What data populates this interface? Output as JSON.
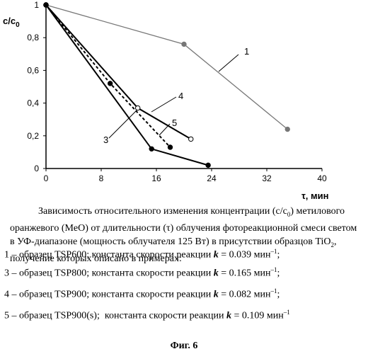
{
  "chart_data": {
    "type": "line",
    "ylabel": "c/c₀",
    "xlabel": "τ, мин",
    "xlim": [
      0,
      40
    ],
    "ylim": [
      0,
      1
    ],
    "x_ticks": [
      "0",
      "8",
      "16",
      "24",
      "32",
      "40"
    ],
    "y_ticks": [
      "0",
      "0,2",
      "0,4",
      "0,6",
      "0,8",
      "1"
    ],
    "grid": false,
    "series": [
      {
        "name": "1",
        "style": "solid",
        "marker": "filled",
        "color": "#777777",
        "x": [
          0,
          20,
          35
        ],
        "y": [
          1,
          0.76,
          0.24
        ]
      },
      {
        "name": "3",
        "style": "solid",
        "marker": "filled",
        "color": "#000000",
        "x": [
          0,
          15.3,
          23.5
        ],
        "y": [
          1,
          0.12,
          0.02
        ]
      },
      {
        "name": "4",
        "style": "solid",
        "marker": "open",
        "color": "#000000",
        "x": [
          0,
          13.3,
          21
        ],
        "y": [
          1,
          0.37,
          0.18
        ]
      },
      {
        "name": "5",
        "style": "dashed",
        "marker": "filled",
        "color": "#000000",
        "x": [
          0,
          9.3,
          18
        ],
        "y": [
          1,
          0.52,
          0.13
        ]
      }
    ]
  },
  "caption": {
    "title_html": "Зависимость относительного изменения концентрации (c/c<sub>0</sub>) метилового оранжевого (MeO) от длительности (τ) облучения фотореакционной смеси светом в УФ-диапазоне (мощность облучателя 125 Вт) в присутствии образцов TiO<sub>2</sub>, получение которых описано в примерах:",
    "samples": [
      "1 – образец TSP600; константа скорости реакции <b><i>k</i></b> = 0.039 мин<sup>–1</sup>;",
      "3 – образец TSP800; константа скорости реакции <b><i>k</i></b> = 0.165 мин<sup>–1</sup>;",
      "4 – образец TSP900; константа скорости реакции <b><i>k</i></b> = 0.082 мин<sup>–1</sup>;",
      "5 – образец TSP900(s);&nbsp; константа скорости реакции <b><i>k</i></b> = 0.109 мин<sup>–1</sup>"
    ]
  },
  "figure_label": "Фиг. 6"
}
